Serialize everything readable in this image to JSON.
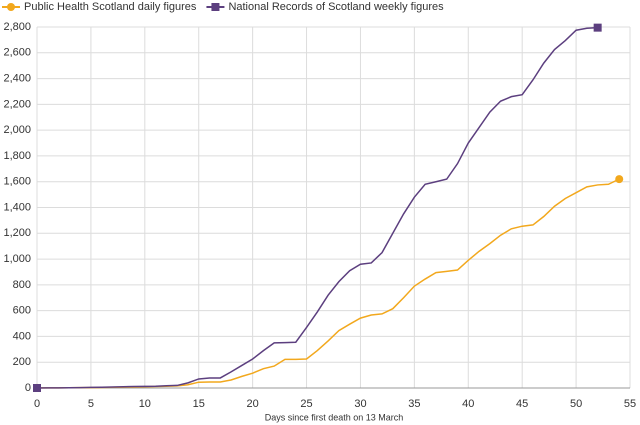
{
  "chart_data": {
    "type": "line",
    "xlabel": "Days since first death on 13 March",
    "x": [
      0,
      1,
      2,
      3,
      4,
      5,
      6,
      7,
      8,
      9,
      10,
      11,
      12,
      13,
      14,
      15,
      16,
      17,
      18,
      19,
      20,
      21,
      22,
      23,
      24,
      25,
      26,
      27,
      28,
      29,
      30,
      31,
      32,
      33,
      34,
      35,
      36,
      37,
      38,
      39,
      40,
      41,
      42,
      43,
      44,
      45,
      46,
      47,
      48,
      49,
      50,
      51,
      52,
      53,
      54
    ],
    "series": [
      {
        "name": "Public Health Scotland daily figures",
        "color": "#f2a81d",
        "marker": "circle",
        "values": [
          1,
          1,
          1,
          2,
          3,
          3,
          4,
          6,
          7,
          8,
          10,
          12,
          14,
          16,
          25,
          45,
          47,
          47,
          62,
          90,
          115,
          150,
          170,
          222,
          222,
          225,
          290,
          365,
          445,
          495,
          542,
          566,
          575,
          615,
          700,
          790,
          845,
          895,
          905,
          915,
          990,
          1060,
          1120,
          1185,
          1235,
          1255,
          1265,
          1330,
          1410,
          1470,
          1515,
          1560,
          1575,
          1580,
          1620
        ]
      },
      {
        "name": "National Records of Scotland weekly figures",
        "color": "#5c3f7f",
        "marker": "square",
        "values": [
          0,
          1,
          1,
          2,
          3,
          5,
          6,
          8,
          10,
          12,
          13,
          14,
          17,
          20,
          40,
          70,
          78,
          78,
          125,
          175,
          225,
          290,
          350,
          352,
          355,
          470,
          590,
          720,
          825,
          910,
          960,
          970,
          1050,
          1200,
          1350,
          1480,
          1580,
          1600,
          1620,
          1740,
          1900,
          2020,
          2140,
          2225,
          2260,
          2275,
          2390,
          2520,
          2625,
          2695,
          2775,
          2790,
          2795,
          null,
          null
        ]
      }
    ],
    "xlim": [
      0,
      55
    ],
    "xticks": [
      0,
      5,
      10,
      15,
      20,
      25,
      30,
      35,
      40,
      45,
      50,
      55
    ],
    "ylim": [
      0,
      2800
    ],
    "yticks": [
      0,
      200,
      400,
      600,
      800,
      {
        "value": 1000,
        "label": "1,000"
      },
      {
        "value": 1200,
        "label": "1,200"
      },
      {
        "value": 1400,
        "label": "1,400"
      },
      {
        "value": 1600,
        "label": "1,600"
      },
      {
        "value": 1800,
        "label": "1,800"
      },
      {
        "value": 2000,
        "label": "2,000"
      },
      {
        "value": 2200,
        "label": "2,200"
      },
      {
        "value": 2400,
        "label": "2,400"
      },
      {
        "value": 2600,
        "label": "2,600"
      },
      {
        "value": 2800,
        "label": "2,800"
      }
    ],
    "grid": true,
    "legend": "top-left"
  }
}
